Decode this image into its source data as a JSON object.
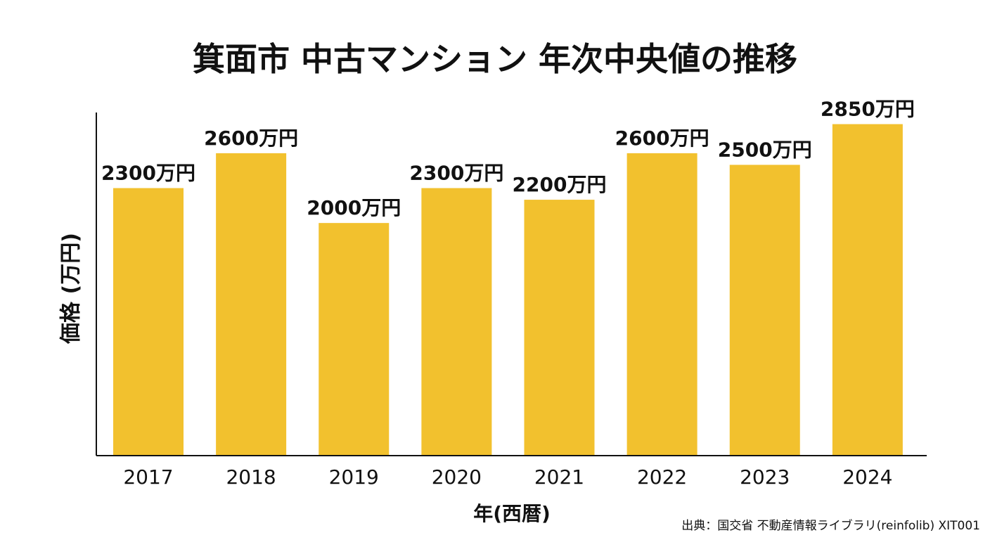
{
  "chart_data": {
    "type": "bar",
    "title": "箕面市 中古マンション 年次中央値の推移",
    "xlabel": "年(西暦)",
    "ylabel": "価格 (万円)",
    "categories": [
      "2017",
      "2018",
      "2019",
      "2020",
      "2021",
      "2022",
      "2023",
      "2024"
    ],
    "values": [
      2300,
      2600,
      2000,
      2300,
      2200,
      2600,
      2500,
      2850
    ],
    "data_labels": [
      "2300万円",
      "2600万円",
      "2000万円",
      "2300万円",
      "2200万円",
      "2600万円",
      "2500万円",
      "2850万円"
    ],
    "ylim": [
      0,
      2950
    ],
    "grid": false,
    "bar_color": "#F2C12E"
  },
  "source": "出典：国交省 不動産情報ライブラリ(reinfolib) XIT001"
}
